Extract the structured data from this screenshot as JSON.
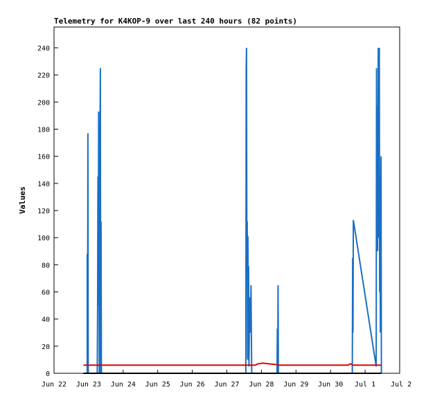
{
  "chart_data": {
    "type": "line",
    "title": "Telemetry for K4KOP-9 over last 240 hours (82 points)",
    "ylabel": "Values",
    "xlabel": "",
    "ylim": [
      0,
      240
    ],
    "xlim": [
      "Jun 22",
      "Jul 2"
    ],
    "y_ticks": [
      0,
      20,
      40,
      60,
      80,
      100,
      120,
      140,
      160,
      180,
      200,
      220,
      240
    ],
    "x_ticks": [
      {
        "label": "Jun 22",
        "day": 0
      },
      {
        "label": "Jun 23",
        "day": 1
      },
      {
        "label": "Jun 24",
        "day": 2
      },
      {
        "label": "Jun 25",
        "day": 3
      },
      {
        "label": "Jun 26",
        "day": 4
      },
      {
        "label": "Jun 27",
        "day": 5
      },
      {
        "label": "Jun 28",
        "day": 6
      },
      {
        "label": "Jun 29",
        "day": 7
      },
      {
        "label": "Jun 30",
        "day": 8
      },
      {
        "label": "Jul 1",
        "day": 9
      },
      {
        "label": "Jul 2",
        "day": 10
      }
    ],
    "grid": false,
    "series": [
      {
        "color": "#1a6fc4",
        "points": [
          [
            0.96,
            0
          ],
          [
            0.96,
            88
          ],
          [
            0.97,
            0
          ],
          [
            0.98,
            177
          ],
          [
            0.99,
            0
          ],
          [
            1.25,
            0
          ],
          [
            1.26,
            48
          ],
          [
            1.27,
            145
          ],
          [
            1.28,
            50
          ],
          [
            1.29,
            193
          ],
          [
            1.3,
            96
          ],
          [
            1.31,
            0
          ],
          [
            1.33,
            177
          ],
          [
            1.34,
            225
          ],
          [
            1.35,
            0
          ],
          [
            1.36,
            112
          ],
          [
            1.37,
            0
          ],
          [
            5.55,
            0
          ],
          [
            5.56,
            225
          ],
          [
            5.57,
            240
          ],
          [
            5.58,
            80
          ],
          [
            5.59,
            112
          ],
          [
            5.6,
            10
          ],
          [
            5.61,
            101
          ],
          [
            5.62,
            40
          ],
          [
            5.63,
            79
          ],
          [
            5.64,
            5
          ],
          [
            5.66,
            56
          ],
          [
            5.68,
            30
          ],
          [
            5.7,
            65
          ],
          [
            5.71,
            28
          ],
          [
            5.72,
            0
          ],
          [
            6.45,
            0
          ],
          [
            6.46,
            33
          ],
          [
            6.47,
            0
          ],
          [
            6.48,
            65
          ],
          [
            6.49,
            0
          ],
          [
            8.63,
            0
          ],
          [
            8.64,
            85
          ],
          [
            8.65,
            30
          ],
          [
            8.66,
            113
          ],
          [
            9.32,
            5
          ],
          [
            9.33,
            225
          ],
          [
            9.34,
            100
          ],
          [
            9.35,
            197
          ],
          [
            9.36,
            90
          ],
          [
            9.37,
            138
          ],
          [
            9.38,
            240
          ],
          [
            9.39,
            120
          ],
          [
            9.4,
            100
          ],
          [
            9.41,
            240
          ],
          [
            9.42,
            60
          ],
          [
            9.43,
            145
          ],
          [
            9.44,
            30
          ],
          [
            9.45,
            104
          ],
          [
            9.46,
            160
          ],
          [
            9.47,
            0
          ]
        ]
      },
      {
        "color": "#e00000",
        "points": [
          [
            0.85,
            6
          ],
          [
            5.82,
            6
          ],
          [
            5.9,
            7
          ],
          [
            6.05,
            7.5
          ],
          [
            6.2,
            7
          ],
          [
            6.4,
            6.5
          ],
          [
            6.5,
            6
          ],
          [
            8.5,
            6
          ],
          [
            8.58,
            7
          ],
          [
            8.65,
            6
          ],
          [
            9.47,
            6
          ]
        ]
      },
      {
        "color": "#000000",
        "points": [
          [
            0.85,
            0
          ],
          [
            9.47,
            0
          ]
        ]
      }
    ]
  }
}
